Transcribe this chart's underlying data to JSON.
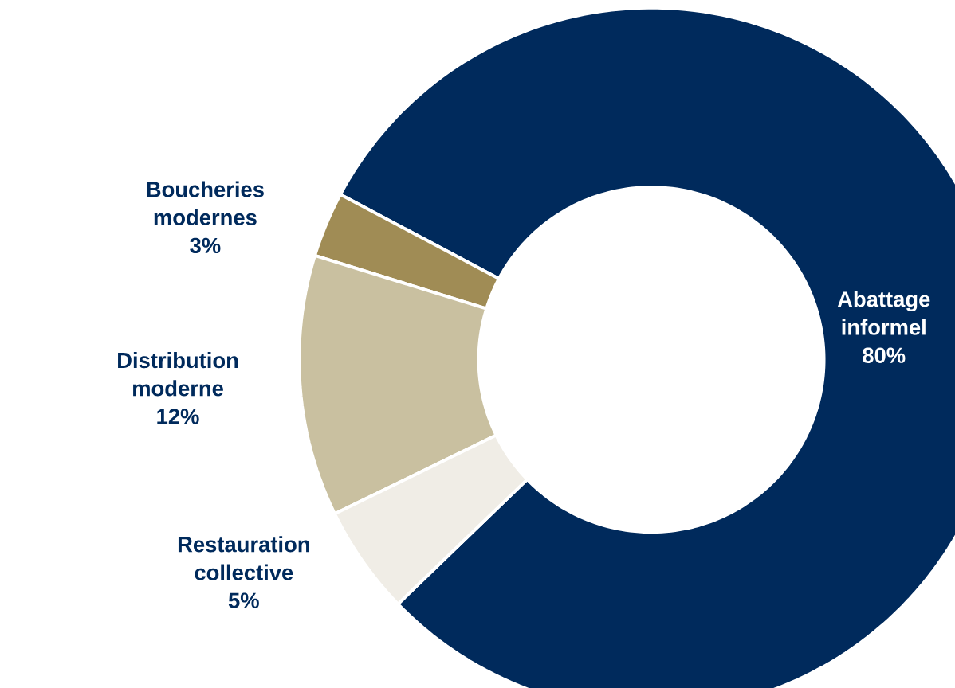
{
  "chart_data": {
    "type": "donut",
    "categories": [
      "Abattage informel",
      "Boucheries modernes",
      "Distribution moderne",
      "Restauration collective"
    ],
    "values": [
      80,
      3,
      12,
      5
    ],
    "value_labels": [
      "80%",
      "3%",
      "12%",
      "5%"
    ],
    "colors": [
      "#002a5c",
      "#a08c55",
      "#c9c0a0",
      "#f0ede6"
    ]
  }
}
